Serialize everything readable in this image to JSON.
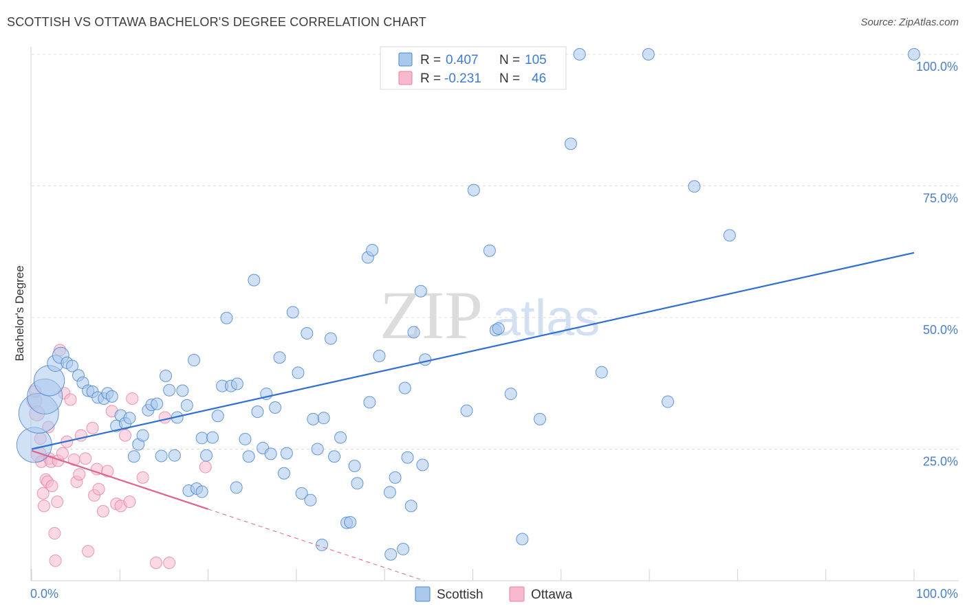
{
  "header": {
    "title": "SCOTTISH VS OTTAWA BACHELOR'S DEGREE CORRELATION CHART",
    "source": "Source: ZipAtlas.com"
  },
  "watermark": {
    "zip": "ZIP",
    "atlas": "atlas"
  },
  "colors": {
    "scottish_fill": "#a9c8ec",
    "scottish_stroke": "#4a86d0",
    "scottish_line": "#2e6fcf",
    "ottawa_fill": "#f6b9cd",
    "ottawa_stroke": "#e57fa0",
    "ottawa_line": "#e0628f",
    "tick_text": "#4a7fc8",
    "grid": "#dcdcdc"
  },
  "legend": {
    "rows": [
      {
        "r_label": "R =",
        "r_value": "0.407",
        "n_label": "N =",
        "n_value": "105"
      },
      {
        "r_label": "R =",
        "r_value": "-0.231",
        "n_label": "N =",
        "n_value": "46"
      }
    ]
  },
  "bottom_legend": {
    "scottish": "Scottish",
    "ottawa": "Ottawa"
  },
  "chart_data": {
    "type": "scatter",
    "title": "SCOTTISH VS OTTAWA BACHELOR'S DEGREE CORRELATION CHART",
    "xlabel": "",
    "ylabel": "Bachelor's Degree",
    "xlim": [
      0,
      100
    ],
    "ylim": [
      0,
      100
    ],
    "x_tick_labels": [
      "0.0%",
      "100.0%"
    ],
    "y_ticks": [
      25,
      50,
      75,
      100
    ],
    "y_tick_labels": [
      "25.0%",
      "50.0%",
      "75.0%",
      "100.0%"
    ],
    "grid": true,
    "legend_position": "top-center",
    "series": [
      {
        "name": "Scottish",
        "r": 0.407,
        "n": 105,
        "trend": {
          "x0": 0,
          "y0": 25.0,
          "x1": 100,
          "y1": 62.3
        },
        "points": [
          [
            0.3,
            25.8,
            3
          ],
          [
            0.8,
            31.8,
            3.4
          ],
          [
            1.5,
            35.0,
            3
          ],
          [
            2.0,
            38.0,
            2.6
          ],
          [
            2.7,
            41.3,
            1.4
          ],
          [
            3.3,
            42.8,
            1.4
          ],
          [
            4.0,
            41.4,
            1
          ],
          [
            4.6,
            40.8,
            1
          ],
          [
            5.3,
            39.0,
            1
          ],
          [
            5.8,
            37.6,
            1
          ],
          [
            6.4,
            36.1,
            1
          ],
          [
            6.9,
            35.9,
            1
          ],
          [
            7.5,
            34.8,
            1
          ],
          [
            8.2,
            34.6,
            1
          ],
          [
            8.6,
            35.6,
            1
          ],
          [
            9.1,
            35.0,
            1
          ],
          [
            9.6,
            29.4,
            1
          ],
          [
            10.1,
            31.4,
            1
          ],
          [
            10.6,
            29.9,
            1
          ],
          [
            11.1,
            30.9,
            1
          ],
          [
            11.6,
            23.6,
            1
          ],
          [
            12.1,
            25.9,
            1
          ],
          [
            12.6,
            27.6,
            1
          ],
          [
            13.2,
            32.4,
            1
          ],
          [
            13.6,
            33.4,
            1
          ],
          [
            14.2,
            33.6,
            1
          ],
          [
            14.7,
            23.7,
            1
          ],
          [
            15.2,
            38.9,
            1
          ],
          [
            15.6,
            36.2,
            1
          ],
          [
            16.2,
            23.8,
            1
          ],
          [
            16.5,
            31.0,
            1
          ],
          [
            17.1,
            36.1,
            1
          ],
          [
            17.6,
            33.3,
            1
          ],
          [
            17.8,
            17.1,
            1
          ],
          [
            18.4,
            41.9,
            1
          ],
          [
            18.7,
            17.5,
            1
          ],
          [
            19.3,
            27.1,
            1
          ],
          [
            19.3,
            16.9,
            1
          ],
          [
            19.8,
            23.8,
            1
          ],
          [
            20.5,
            27.2,
            1
          ],
          [
            21.1,
            31.3,
            1
          ],
          [
            21.6,
            37.0,
            1
          ],
          [
            22.1,
            49.9,
            1
          ],
          [
            22.6,
            37.0,
            1
          ],
          [
            23.2,
            17.7,
            1
          ],
          [
            23.3,
            37.4,
            1
          ],
          [
            24.2,
            26.9,
            1
          ],
          [
            24.6,
            23.6,
            1
          ],
          [
            25.2,
            57.1,
            1
          ],
          [
            25.6,
            32.1,
            1
          ],
          [
            26.2,
            25.2,
            1
          ],
          [
            26.6,
            35.5,
            1
          ],
          [
            27.1,
            24.1,
            1
          ],
          [
            27.6,
            32.9,
            1
          ],
          [
            28.1,
            42.4,
            1
          ],
          [
            28.6,
            20.4,
            1
          ],
          [
            28.9,
            24.2,
            1
          ],
          [
            29.6,
            51.0,
            1
          ],
          [
            30.2,
            39.5,
            1
          ],
          [
            30.6,
            16.6,
            1
          ],
          [
            31.2,
            47.0,
            1
          ],
          [
            31.6,
            15.3,
            1
          ],
          [
            31.9,
            30.7,
            1
          ],
          [
            32.4,
            25.0,
            1
          ],
          [
            32.9,
            6.8,
            1
          ],
          [
            33.1,
            30.9,
            1
          ],
          [
            33.9,
            46.0,
            1
          ],
          [
            34.3,
            23.6,
            1
          ],
          [
            35.0,
            27.2,
            1
          ],
          [
            35.7,
            11.0,
            1
          ],
          [
            36.1,
            11.1,
            1
          ],
          [
            36.6,
            21.8,
            1
          ],
          [
            36.9,
            18.5,
            1
          ],
          [
            38.1,
            61.4,
            1
          ],
          [
            38.3,
            33.9,
            1
          ],
          [
            38.6,
            62.8,
            1
          ],
          [
            39.4,
            42.7,
            1
          ],
          [
            40.6,
            16.8,
            1
          ],
          [
            40.7,
            5.0,
            1
          ],
          [
            41.2,
            19.6,
            1
          ],
          [
            42.1,
            6.0,
            1
          ],
          [
            42.3,
            36.6,
            1
          ],
          [
            42.6,
            23.4,
            1
          ],
          [
            43.0,
            14.2,
            1
          ],
          [
            43.3,
            47.2,
            1
          ],
          [
            44.1,
            55.0,
            1
          ],
          [
            44.3,
            22.0,
            1
          ],
          [
            44.6,
            42.0,
            1
          ],
          [
            49.3,
            32.3,
            1
          ],
          [
            50.1,
            74.2,
            1
          ],
          [
            51.9,
            62.7,
            1
          ],
          [
            52.6,
            47.6,
            1
          ],
          [
            52.9,
            47.9,
            1
          ],
          [
            54.3,
            35.5,
            1
          ],
          [
            55.6,
            7.9,
            1
          ],
          [
            57.6,
            30.7,
            1
          ],
          [
            61.1,
            83.0,
            1
          ],
          [
            62.1,
            100.0,
            1
          ],
          [
            64.6,
            39.6,
            1
          ],
          [
            69.9,
            100.0,
            1
          ],
          [
            72.1,
            34.0,
            1
          ],
          [
            75.1,
            74.9,
            1
          ],
          [
            79.1,
            65.6,
            1
          ],
          [
            100.0,
            100.0,
            1
          ]
        ]
      },
      {
        "name": "Ottawa",
        "r": -0.231,
        "n": 46,
        "trend": {
          "x0": 0,
          "y0": 24.7,
          "x1": 20,
          "y1": 13.6
        },
        "trend_dashed": {
          "x0": 20,
          "y0": 13.6,
          "x1": 44.5,
          "y1": 0.0
        },
        "points": [
          [
            0.3,
            34.2,
            1.3
          ],
          [
            0.6,
            31.8,
            1.3
          ],
          [
            0.8,
            24.0,
            1.3
          ],
          [
            1.0,
            27.0,
            1
          ],
          [
            1.1,
            22.6,
            1
          ],
          [
            1.3,
            16.6,
            1
          ],
          [
            1.4,
            14.2,
            1
          ],
          [
            1.6,
            19.2,
            1
          ],
          [
            1.8,
            18.8,
            1
          ],
          [
            2.0,
            23.2,
            1
          ],
          [
            2.2,
            22.6,
            1
          ],
          [
            2.6,
            9.0,
            1
          ],
          [
            2.7,
            3.8,
            1
          ],
          [
            2.9,
            15.0,
            1
          ],
          [
            3.0,
            22.8,
            1
          ],
          [
            3.2,
            43.8,
            1
          ],
          [
            3.7,
            35.6,
            1
          ],
          [
            4.0,
            26.4,
            1
          ],
          [
            4.4,
            34.4,
            1
          ],
          [
            4.8,
            23.0,
            1
          ],
          [
            5.1,
            18.8,
            1
          ],
          [
            5.4,
            20.2,
            1
          ],
          [
            5.6,
            27.6,
            1
          ],
          [
            6.1,
            23.2,
            1
          ],
          [
            6.4,
            5.6,
            1
          ],
          [
            6.9,
            29.0,
            1
          ],
          [
            7.1,
            16.2,
            1
          ],
          [
            7.4,
            21.2,
            1
          ],
          [
            7.6,
            17.4,
            1
          ],
          [
            8.1,
            13.2,
            1
          ],
          [
            8.6,
            20.8,
            1
          ],
          [
            9.1,
            32.2,
            1
          ],
          [
            9.6,
            14.6,
            1
          ],
          [
            10.1,
            14.2,
            1
          ],
          [
            10.6,
            27.6,
            1
          ],
          [
            11.1,
            15.0,
            1
          ],
          [
            11.4,
            34.6,
            1
          ],
          [
            12.6,
            19.6,
            1
          ],
          [
            14.1,
            3.4,
            1
          ],
          [
            15.1,
            31.0,
            1
          ],
          [
            15.6,
            3.4,
            1
          ],
          [
            19.7,
            21.6,
            1
          ],
          [
            3.5,
            24.2,
            1
          ],
          [
            1.9,
            29.2,
            1
          ],
          [
            0.4,
            36.0,
            1
          ],
          [
            2.3,
            18.0,
            1
          ]
        ]
      }
    ]
  }
}
